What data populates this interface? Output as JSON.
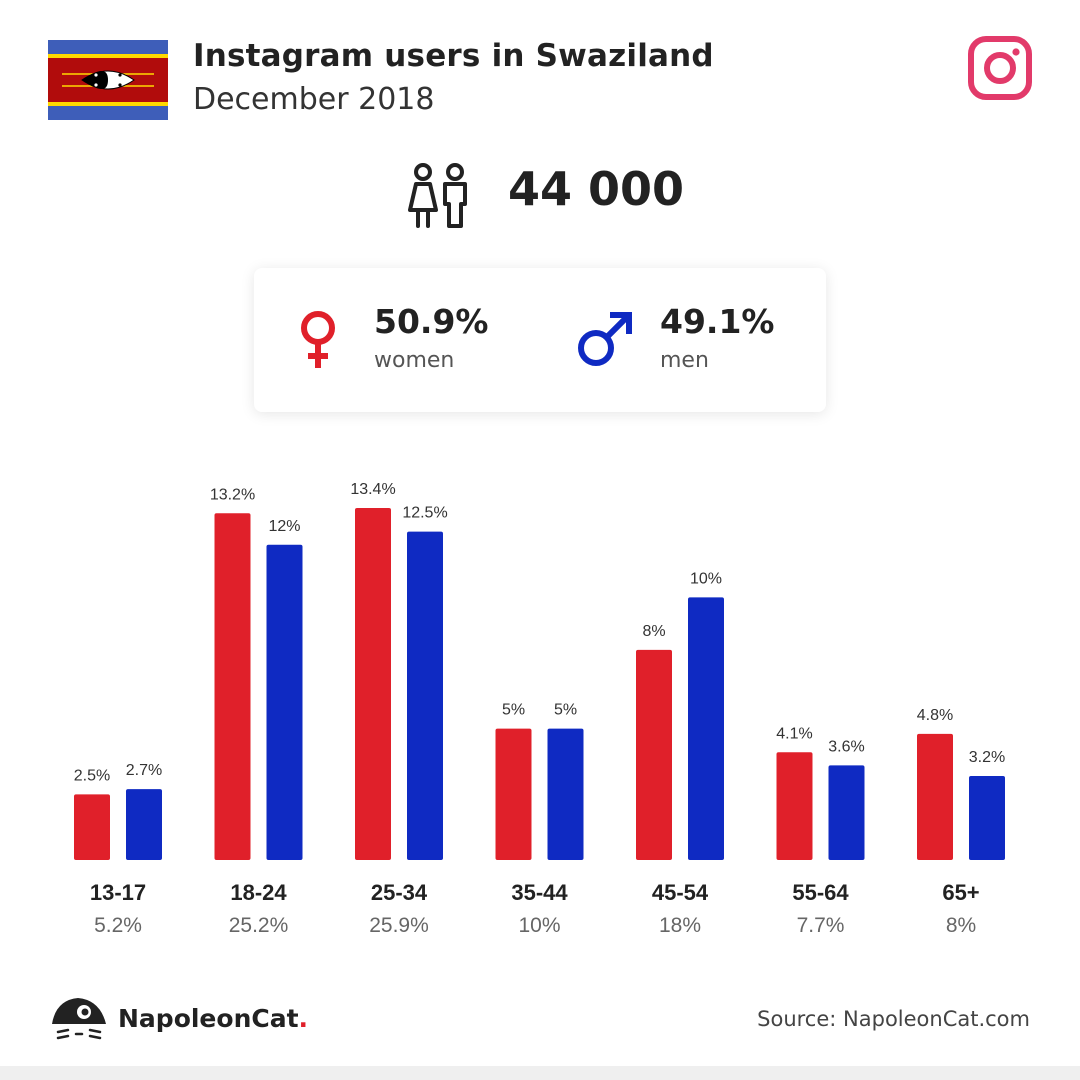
{
  "header": {
    "title": "Instagram users in Swaziland",
    "subtitle": "December 2018"
  },
  "total_users": "44 000",
  "gender": {
    "women_pct": "50.9%",
    "women_label": "women",
    "men_pct": "49.1%",
    "men_label": "men"
  },
  "colors": {
    "women": "#e0202a",
    "men": "#0f2ac2",
    "instagram": "#e23a6a"
  },
  "icons": {
    "flag": "swaziland-flag-icon",
    "instagram": "instagram-icon",
    "people": "people-icon",
    "female": "female-symbol-icon",
    "male": "male-symbol-icon",
    "brand": "napoleoncat-logo-icon"
  },
  "chart_data": {
    "type": "bar",
    "categories": [
      "13-17",
      "18-24",
      "25-34",
      "35-44",
      "45-54",
      "55-64",
      "65+"
    ],
    "category_totals": [
      "5.2%",
      "25.2%",
      "25.9%",
      "10%",
      "18%",
      "7.7%",
      "8%"
    ],
    "series": [
      {
        "values": [
          2.5,
          13.2,
          13.4,
          5,
          8,
          4.1,
          4.8
        ],
        "labels": [
          "2.5%",
          "13.2%",
          "13.4%",
          "5%",
          "8%",
          "4.1%",
          "4.8%"
        ],
        "color": "#e0202a"
      },
      {
        "values": [
          2.7,
          12,
          12.5,
          5,
          10,
          3.6,
          3.2
        ],
        "labels": [
          "2.7%",
          "12%",
          "12.5%",
          "5%",
          "10%",
          "3.6%",
          "3.2%"
        ],
        "color": "#0f2ac2"
      }
    ],
    "ylim": [
      0,
      13.4
    ],
    "grid": false,
    "xlabel": "",
    "ylabel": ""
  },
  "footer": {
    "brand": "NapoleonCat",
    "brand_dot": ".",
    "source_label": "Source:",
    "source_value": "NapoleonCat.com"
  }
}
